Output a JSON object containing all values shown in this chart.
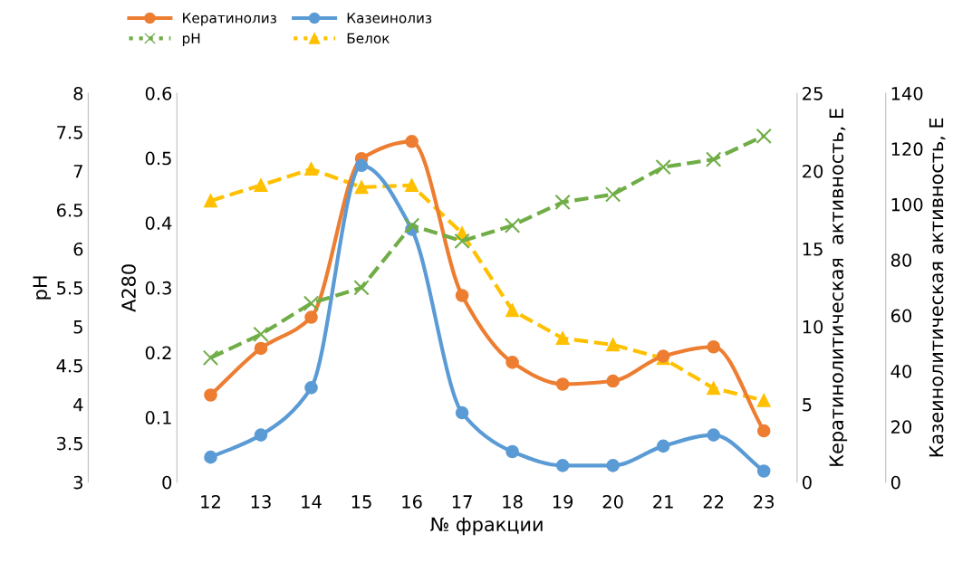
{
  "chart_data": [
    {
      "type": "line",
      "xlabel": "№ фракции",
      "ylabel": "A280",
      "y2label": "Кератинолитическая  активность, Е",
      "y3label": "Казеинолитическая активность, Е",
      "categories": [
        "12",
        "13",
        "14",
        "15",
        "16",
        "17",
        "18",
        "19",
        "20",
        "21",
        "22",
        "23"
      ],
      "series": [
        {
          "name": "Кератинолиз",
          "color": "#ed7d31",
          "axis": "y2",
          "marker": "circle",
          "line_style": "solid",
          "values": [
            5.6,
            8.6,
            10.6,
            20.8,
            21.9,
            12.0,
            7.7,
            6.3,
            6.5,
            8.1,
            8.7,
            3.3
          ]
        },
        {
          "name": "Казеинолиз",
          "color": "#5b9bd5",
          "axis": "y3",
          "marker": "circle",
          "line_style": "solid",
          "values": [
            9,
            17,
            34,
            114,
            91,
            25,
            11,
            6,
            6,
            13,
            17,
            4
          ]
        },
        {
          "name": "Белок",
          "color": "#ffc000",
          "marker": "triangle",
          "line_style": "dashed",
          "values": [
            0.434,
            0.458,
            0.483,
            0.455,
            0.458,
            0.384,
            0.265,
            0.222,
            0.212,
            0.191,
            0.145,
            0.126
          ]
        }
      ],
      "ylim": [
        0,
        0.6
      ],
      "yticks": [
        0,
        0.1,
        0.2,
        0.3,
        0.4,
        0.5,
        0.6
      ],
      "y2lim": [
        0,
        25
      ],
      "y2ticks": [
        0,
        5,
        10,
        15,
        20,
        25
      ],
      "y3lim": [
        0,
        140
      ],
      "y3ticks": [
        0,
        20,
        40,
        60,
        80,
        100,
        120,
        140
      ],
      "grid": false,
      "legend": "top left"
    },
    {
      "type": "line",
      "ylabel": "pH",
      "tick_labels": "y",
      "categories": [
        "12",
        "13",
        "14",
        "15",
        "16",
        "17",
        "18",
        "19",
        "20",
        "21",
        "22",
        "23"
      ],
      "series": [
        {
          "name": "pH",
          "color": "#70ad47",
          "marker": "cross",
          "line_style": "dashed",
          "values": [
            4.6,
            4.9,
            5.3,
            5.5,
            6.3,
            6.1,
            6.3,
            6.6,
            6.7,
            7.05,
            7.15,
            7.45
          ]
        }
      ],
      "ylim": [
        3,
        8
      ],
      "yticks": [
        3,
        3.5,
        4,
        4.5,
        5,
        5.5,
        6,
        6.5,
        7,
        7.5,
        8
      ],
      "grid": false,
      "legend": "top left"
    }
  ]
}
